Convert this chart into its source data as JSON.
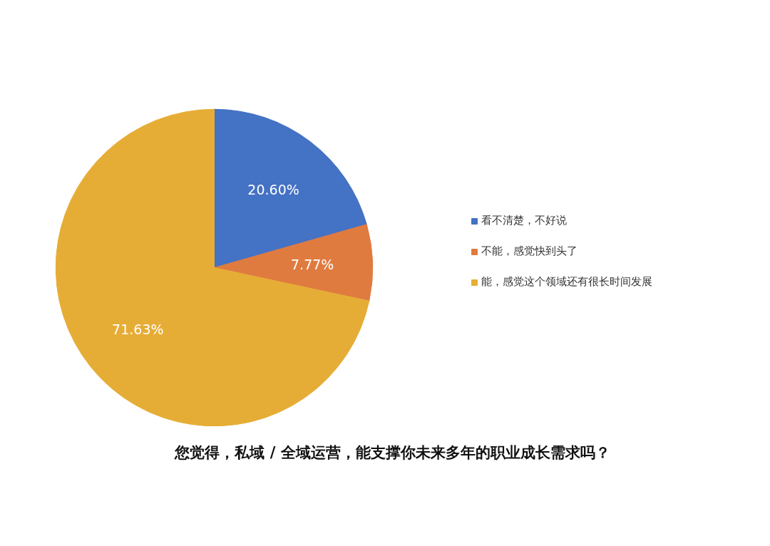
{
  "chart_data": {
    "type": "pie",
    "title": "您觉得，私域 / 全域运营，能支撑你未来多年的职业成长需求吗？",
    "categories": [
      "看不清楚，不好说",
      "不能，感觉快到头了",
      "能，感觉这个领域还有很长时间发展"
    ],
    "values": [
      20.6,
      7.77,
      71.63
    ],
    "colors": [
      "#4472c4",
      "#e07b40",
      "#e6ad36"
    ],
    "value_labels": [
      "20.60%",
      "7.77%",
      "71.63%"
    ],
    "legend": "right"
  }
}
